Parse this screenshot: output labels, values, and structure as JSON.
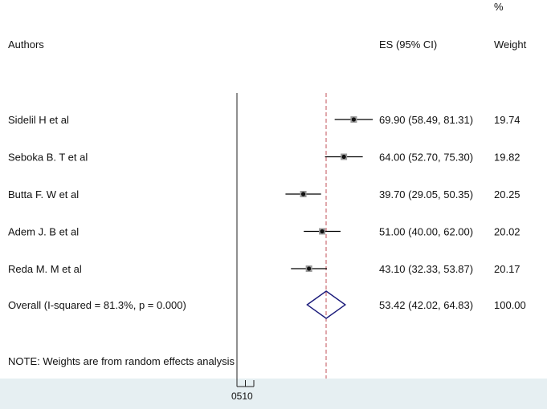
{
  "chart_data": {
    "type": "forest",
    "headers": {
      "authors": "Authors",
      "es": "ES (95% CI)",
      "weight_pct": "%",
      "weight": "Weight"
    },
    "studies": [
      {
        "label": "Sidelil H et al",
        "es": 69.9,
        "lo": 58.49,
        "hi": 81.31,
        "es_text": "69.90 (58.49, 81.31)",
        "weight": "19.74"
      },
      {
        "label": "Seboka B. T et al",
        "es": 64.0,
        "lo": 52.7,
        "hi": 75.3,
        "es_text": "64.00 (52.70, 75.30)",
        "weight": "19.82"
      },
      {
        "label": "Butta F. W et al",
        "es": 39.7,
        "lo": 29.05,
        "hi": 50.35,
        "es_text": "39.70 (29.05, 50.35)",
        "weight": "20.25"
      },
      {
        "label": "Adem J. B et al",
        "es": 51.0,
        "lo": 40.0,
        "hi": 62.0,
        "es_text": "51.00 (40.00, 62.00)",
        "weight": "20.02"
      },
      {
        "label": "Reda M. M et al",
        "es": 43.1,
        "lo": 32.33,
        "hi": 53.87,
        "es_text": "43.10 (32.33, 53.87)",
        "weight": "20.17"
      }
    ],
    "overall": {
      "label": "Overall  (I-squared = 81.3%, p = 0.000)",
      "es": 53.42,
      "lo": 42.02,
      "hi": 64.83,
      "es_text": "53.42 (42.02, 64.83)",
      "weight": "100.00"
    },
    "note": "NOTE: Weights are from random effects analysis",
    "null_line": 0,
    "x_ticks": [
      0,
      5,
      10
    ],
    "x_tick_labels_text": "0510",
    "colors": {
      "ci_line": "#000000",
      "point": "#111111",
      "overall_diamond": "#1a1a7a",
      "overall_line": "#c0505a",
      "axis_band": "#e6eff2"
    }
  }
}
